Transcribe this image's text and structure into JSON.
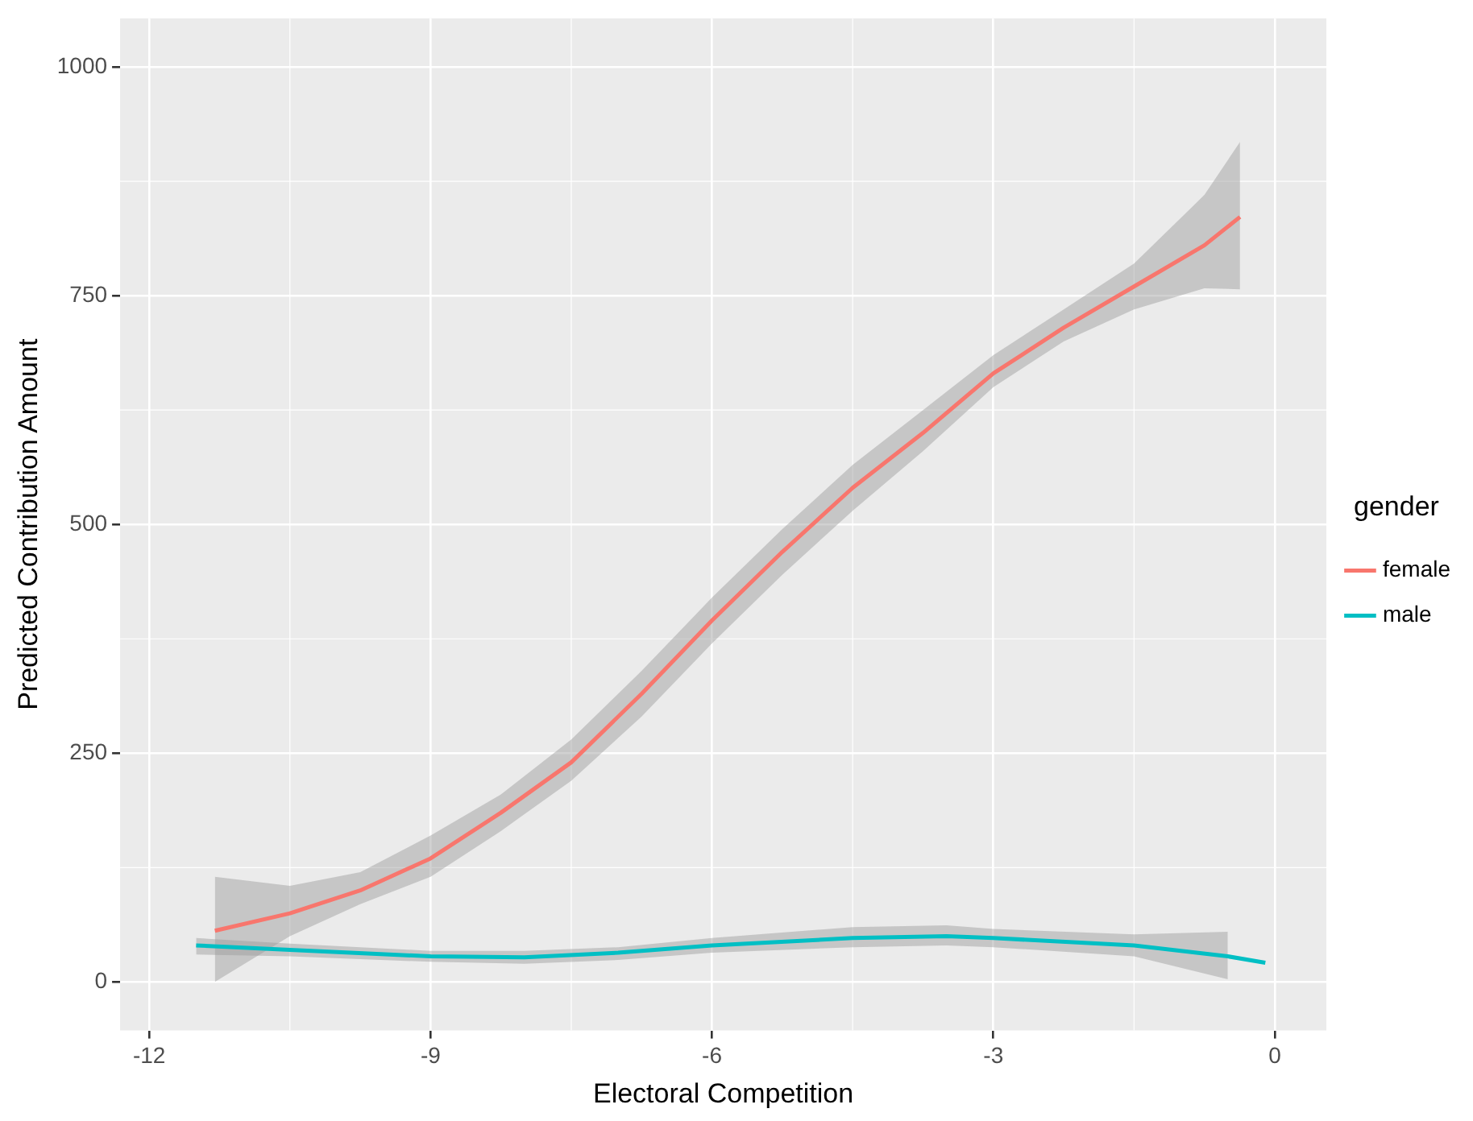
{
  "chart_data": {
    "type": "line",
    "xlabel": "Electoral Competition",
    "ylabel": "Predicted Contribution Amount",
    "legend_title": "gender",
    "legend": "right",
    "grid": true,
    "xlim": [
      -12.31,
      0.55
    ],
    "ylim": [
      -53,
      1053
    ],
    "xticks": [
      -12,
      -9,
      -6,
      -3,
      0
    ],
    "yticks": [
      0,
      250,
      500,
      750,
      1000
    ],
    "series": [
      {
        "name": "female",
        "color": "#f8766d",
        "x": [
          -11.3,
          -10.5,
          -9.75,
          -9,
          -8.25,
          -7.5,
          -6.75,
          -6,
          -5.25,
          -4.5,
          -3.75,
          -3,
          -2.25,
          -1.5,
          -0.75,
          -0.37
        ],
        "values": [
          56,
          75,
          100,
          135,
          185,
          240,
          315,
          395,
          470,
          540,
          600,
          665,
          715,
          760,
          805,
          836
        ],
        "lower": [
          0,
          50,
          85,
          115,
          165,
          220,
          290,
          370,
          445,
          515,
          580,
          650,
          700,
          735,
          758,
          757
        ],
        "upper": [
          115,
          105,
          120,
          160,
          205,
          265,
          340,
          420,
          495,
          565,
          625,
          685,
          735,
          785,
          860,
          918
        ]
      },
      {
        "name": "male",
        "color": "#00bfc4",
        "x": [
          -11.5,
          -10.5,
          -9,
          -8,
          -7,
          -6,
          -4.5,
          -3.5,
          -3,
          -1.5,
          -0.5,
          -0.1
        ],
        "values": [
          40,
          35,
          28,
          27,
          32,
          40,
          48,
          50,
          48,
          40,
          28,
          21
        ],
        "lower": [
          30,
          28,
          22,
          20,
          24,
          32,
          38,
          40,
          38,
          28,
          3,
          null
        ],
        "upper": [
          48,
          42,
          34,
          34,
          38,
          48,
          60,
          62,
          58,
          52,
          55,
          null
        ]
      }
    ]
  }
}
